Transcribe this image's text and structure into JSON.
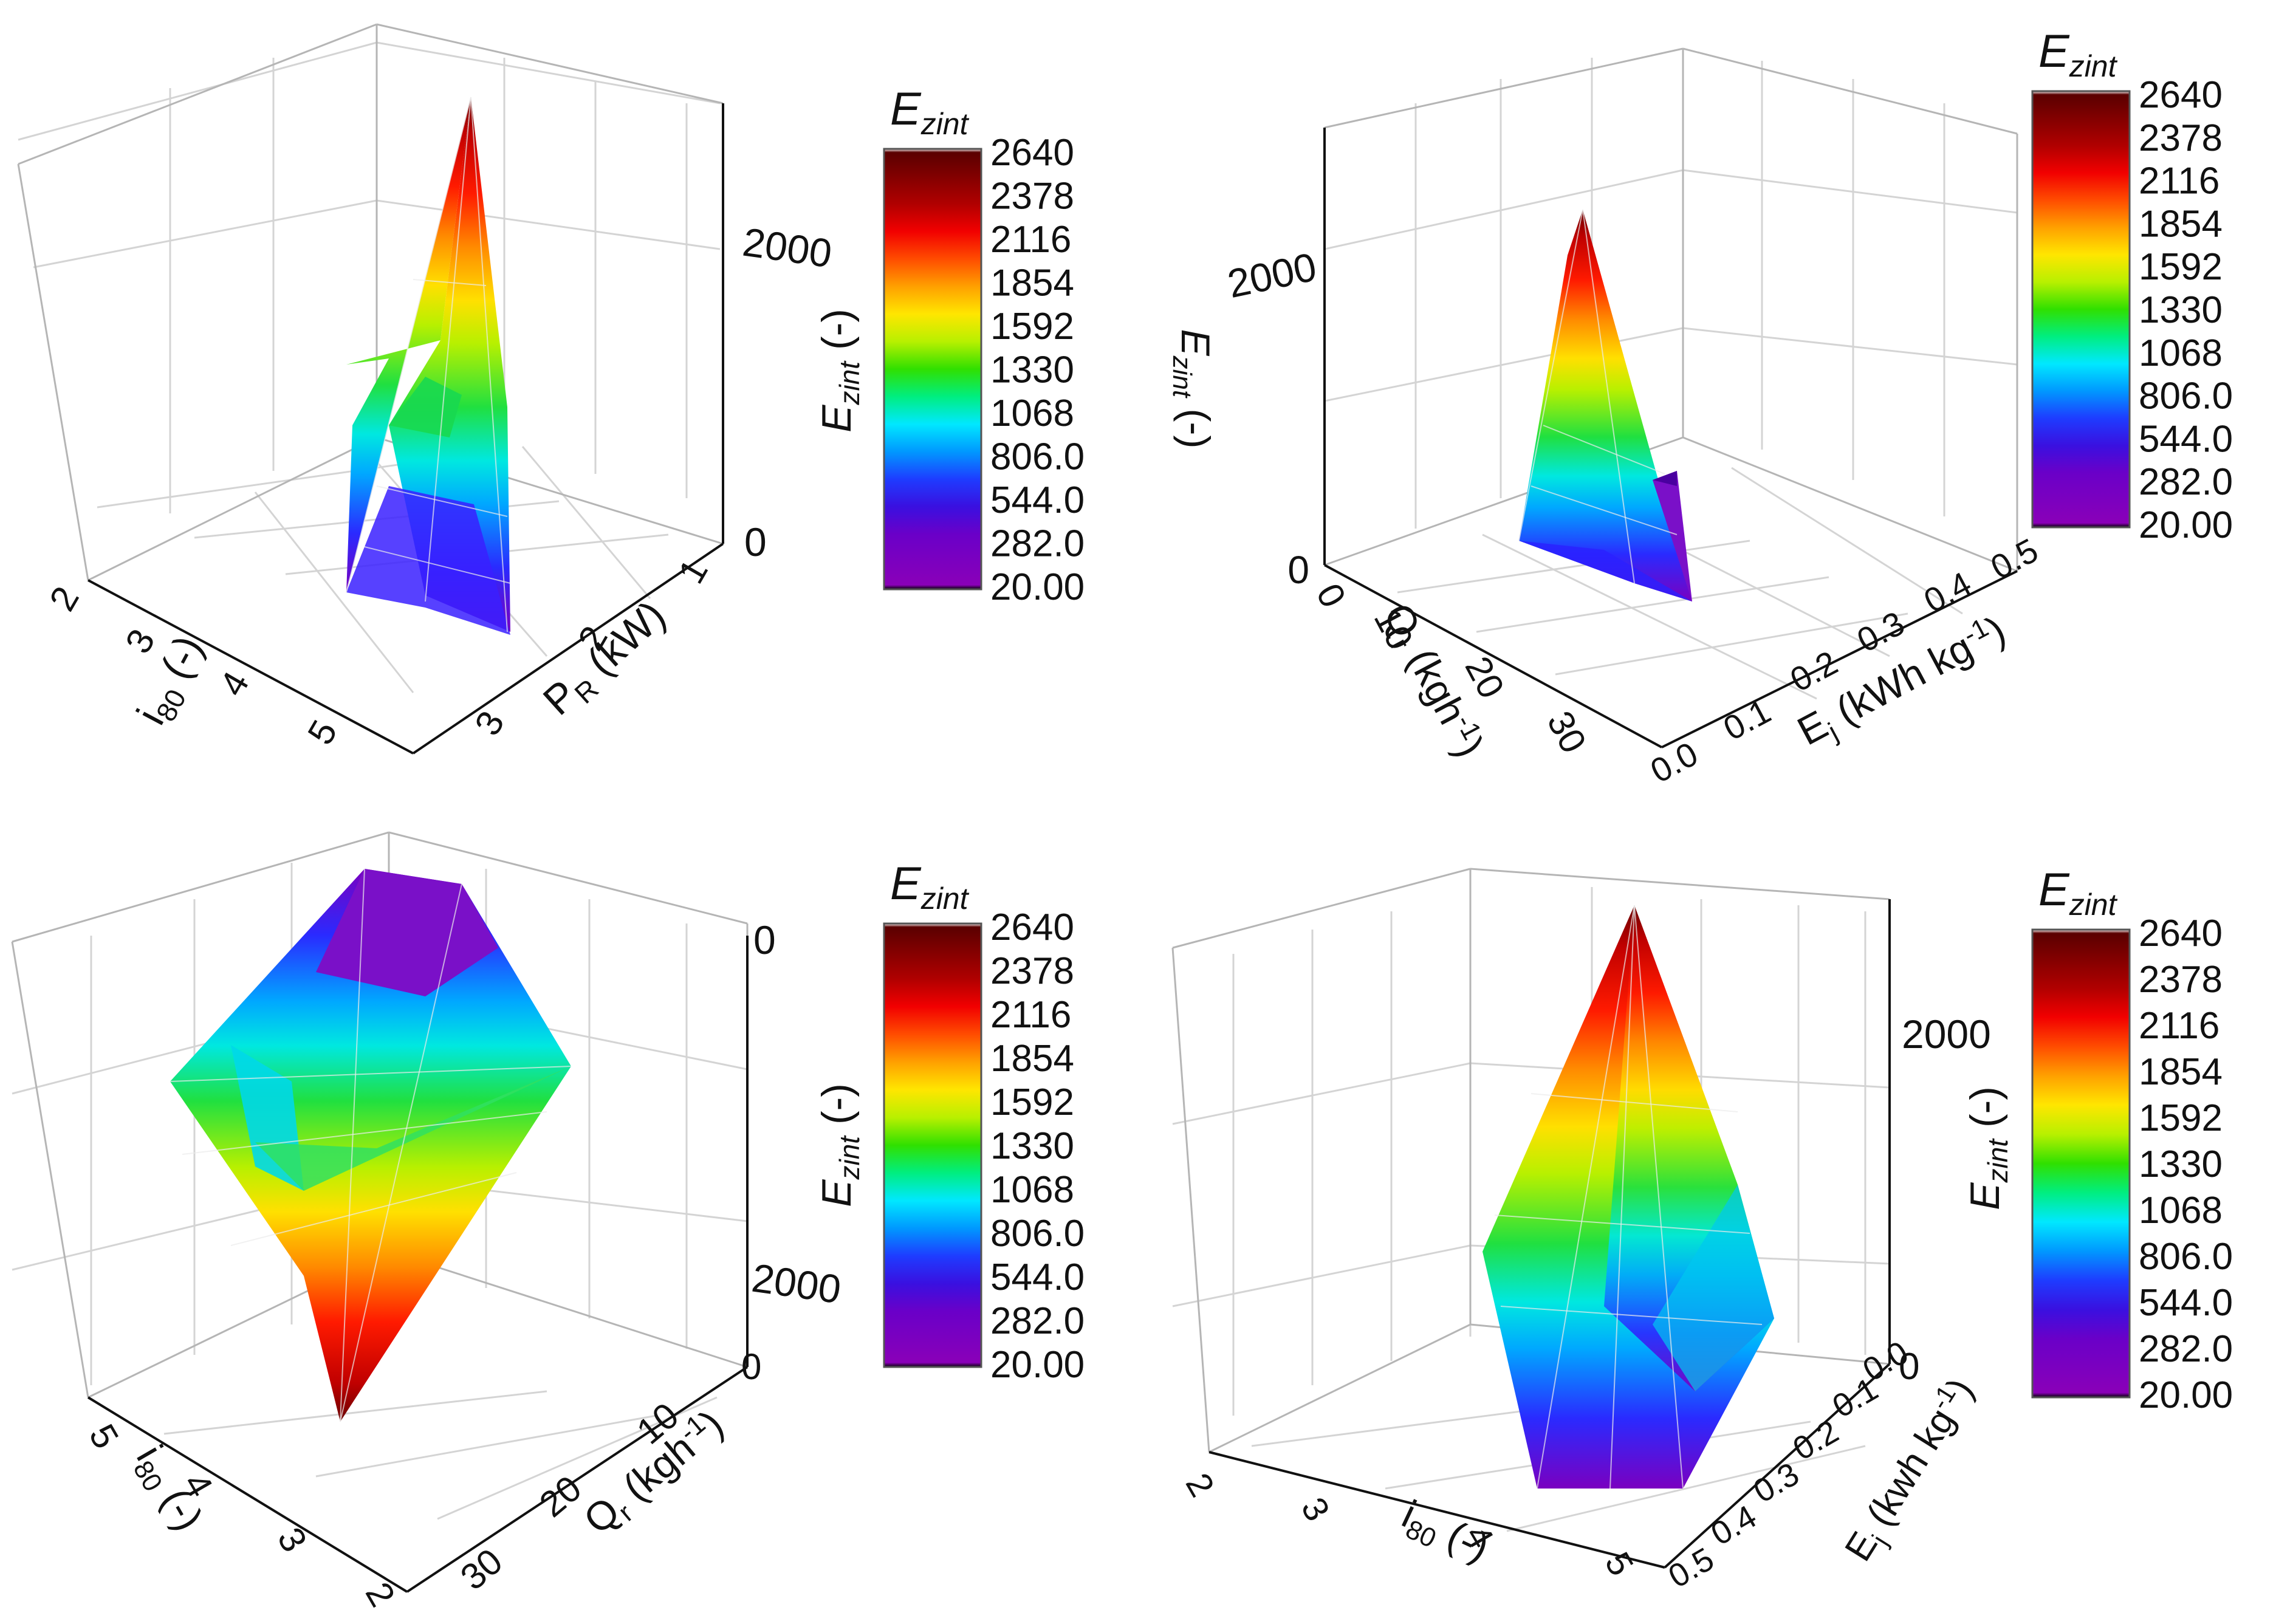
{
  "figure": {
    "colorbar": {
      "title_base": "E",
      "title_sub": "zint",
      "ticks": [
        "2640",
        "2378",
        "2116",
        "1854",
        "1592",
        "1330",
        "1068",
        "806.0",
        "544.0",
        "282.0",
        "20.00"
      ],
      "stops": [
        "#ffffff",
        "#5a0000",
        "#b00000",
        "#f20000",
        "#ff4c00",
        "#ffa000",
        "#ffe600",
        "#b8f000",
        "#30e000",
        "#00ee80",
        "#00e8ff",
        "#0098ff",
        "#1e3cff",
        "#3a10e0",
        "#6a00c8",
        "#8a00b8",
        "#000000"
      ]
    },
    "zlabel": {
      "base": "E",
      "sub": "zint",
      "unit": " (-)"
    }
  },
  "chart_data": [
    {
      "type": "surface3d",
      "panel": "top-left",
      "x_axis": {
        "label_base": "i",
        "label_sub": "80",
        "label_unit": " (-)",
        "ticks": [
          "2",
          "3",
          "4",
          "5"
        ]
      },
      "y_axis": {
        "label_base": "P",
        "label_sub": "R",
        "label_unit": " (kW)",
        "ticks": [
          "1",
          "2",
          "3"
        ]
      },
      "z_axis": {
        "ticks": [
          "0",
          "2000"
        ],
        "range": [
          0,
          2640
        ]
      },
      "grid": true
    },
    {
      "type": "surface3d",
      "panel": "top-right",
      "x_axis": {
        "label_base": "Q",
        "label_sub": "r",
        "label_unit": " (kgh",
        "label_sup": "-1",
        "label_close": ")",
        "ticks": [
          "0",
          "10",
          "20",
          "30"
        ]
      },
      "y_axis": {
        "label_base": "E",
        "label_sub": "j",
        "label_unit": " (kWh kg",
        "label_sup": "-1",
        "label_close": ")",
        "ticks": [
          "0.0",
          "0.1",
          "0.2",
          "0.3",
          "0.4",
          "0.5"
        ]
      },
      "z_axis": {
        "ticks": [
          "0",
          "2000"
        ],
        "range": [
          0,
          2640
        ]
      },
      "grid": true
    },
    {
      "type": "surface3d",
      "panel": "bottom-left",
      "x_axis": {
        "label_base": "i",
        "label_sub": "80",
        "label_unit": " (-)",
        "ticks": [
          "5",
          "4",
          "3",
          "2"
        ]
      },
      "y_axis": {
        "label_base": "Q",
        "label_sub": "r",
        "label_unit": " (kgh",
        "label_sup": "-1",
        "label_close": ")",
        "ticks": [
          "10",
          "20",
          "30"
        ]
      },
      "z_axis": {
        "ticks": [
          "0",
          "2000",
          "0"
        ],
        "range": [
          0,
          2640
        ],
        "reversed": true
      },
      "grid": true
    },
    {
      "type": "surface3d",
      "panel": "bottom-right",
      "x_axis": {
        "label_base": "i",
        "label_sub": "80",
        "label_unit": " (-)",
        "ticks": [
          "2",
          "3",
          "4",
          "5"
        ]
      },
      "y_axis": {
        "label_base": "E",
        "label_sub": "j",
        "label_unit": " (kwh kg",
        "label_sup": "-1",
        "label_close": ")",
        "ticks": [
          "0.0",
          "0.1",
          "0.2",
          "0.3",
          "0.4",
          "0.5"
        ]
      },
      "z_axis": {
        "ticks": [
          "0",
          "2000"
        ],
        "range": [
          0,
          2640
        ]
      },
      "grid": true
    }
  ]
}
